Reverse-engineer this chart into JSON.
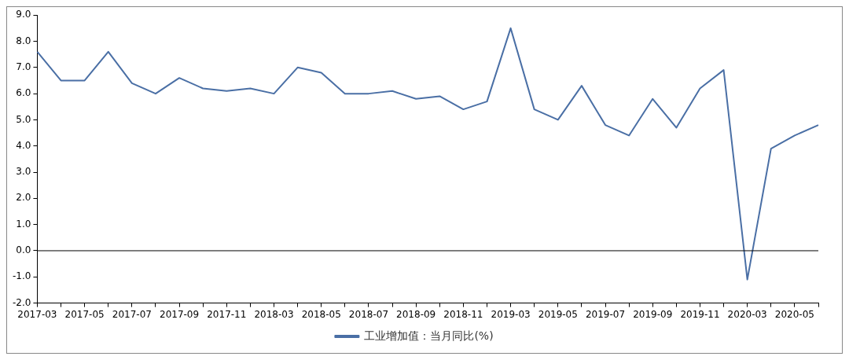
{
  "chart_data": {
    "type": "line",
    "categories": [
      "2017-03",
      null,
      "2017-05",
      null,
      "2017-07",
      null,
      "2017-09",
      null,
      "2017-11",
      null,
      "2018-03",
      null,
      "2018-05",
      null,
      "2018-07",
      null,
      "2018-09",
      null,
      "2018-11",
      null,
      "2019-03",
      null,
      "2019-05",
      null,
      "2019-07",
      null,
      "2019-09",
      null,
      "2019-11",
      null,
      "2020-03",
      null,
      "2020-05",
      null
    ],
    "series": [
      {
        "name": "工业增加值：当月同比(%)",
        "color": "#4a6fa5",
        "values": [
          7.6,
          6.5,
          6.5,
          7.6,
          6.4,
          6.0,
          6.6,
          6.2,
          6.1,
          6.2,
          6.0,
          7.0,
          6.8,
          6.0,
          6.0,
          6.1,
          5.8,
          5.9,
          5.4,
          5.7,
          8.5,
          5.4,
          5.0,
          6.3,
          4.8,
          4.4,
          5.8,
          4.7,
          6.2,
          6.9,
          -1.1,
          3.9,
          4.4,
          4.8
        ]
      }
    ],
    "ylim": [
      -2,
      9
    ],
    "yticks": [
      {
        "value": -2,
        "label": "-2.0"
      },
      {
        "value": -1,
        "label": "-1.0"
      },
      {
        "value": 0,
        "label": "0.0"
      },
      {
        "value": 1,
        "label": "1.0"
      },
      {
        "value": 2,
        "label": "2.0"
      },
      {
        "value": 3,
        "label": "3.0"
      },
      {
        "value": 4,
        "label": "4.0"
      },
      {
        "value": 5,
        "label": "5.0"
      },
      {
        "value": 6,
        "label": "6.0"
      },
      {
        "value": 7,
        "label": "7.0"
      },
      {
        "value": 8,
        "label": "8.0"
      },
      {
        "value": 9,
        "label": "9.0"
      }
    ],
    "ref_lines": [
      {
        "axis": "y",
        "value": 0,
        "color": "#000000"
      }
    ],
    "grid": false,
    "legend": "bottom",
    "marker": "none",
    "line_style": "solid"
  }
}
